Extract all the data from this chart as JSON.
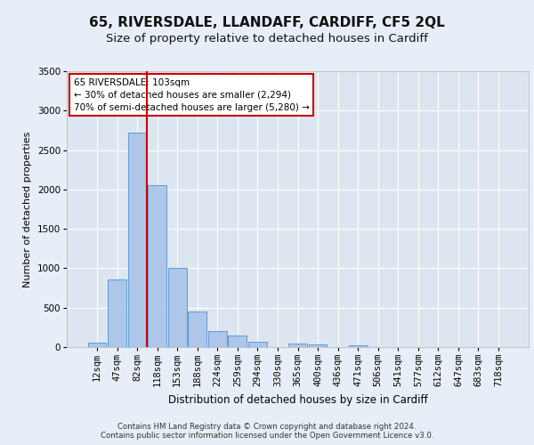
{
  "title": "65, RIVERSDALE, LLANDAFF, CARDIFF, CF5 2QL",
  "subtitle": "Size of property relative to detached houses in Cardiff",
  "xlabel": "Distribution of detached houses by size in Cardiff",
  "ylabel": "Number of detached properties",
  "categories": [
    "12sqm",
    "47sqm",
    "82sqm",
    "118sqm",
    "153sqm",
    "188sqm",
    "224sqm",
    "259sqm",
    "294sqm",
    "330sqm",
    "365sqm",
    "400sqm",
    "436sqm",
    "471sqm",
    "506sqm",
    "541sqm",
    "577sqm",
    "612sqm",
    "647sqm",
    "683sqm",
    "718sqm"
  ],
  "values": [
    55,
    860,
    2720,
    2050,
    1010,
    455,
    205,
    145,
    65,
    0,
    45,
    35,
    0,
    25,
    0,
    0,
    0,
    0,
    0,
    0,
    0
  ],
  "bar_color": "#aec6e8",
  "bar_edge_color": "#5b9bd5",
  "fig_bg_color": "#e8eef7",
  "ax_bg_color": "#dde6f0",
  "grid_color": "#ffffff",
  "property_line_x": 2.5,
  "annotation_line1": "65 RIVERSDALE: 103sqm",
  "annotation_line2": "← 30% of detached houses are smaller (2,294)",
  "annotation_line3": "70% of semi-detached houses are larger (5,280) →",
  "annotation_box_facecolor": "#ffffff",
  "annotation_box_edgecolor": "#cc0000",
  "vline_color": "#cc0000",
  "ylim": [
    0,
    3500
  ],
  "yticks": [
    0,
    500,
    1000,
    1500,
    2000,
    2500,
    3000,
    3500
  ],
  "footer_line1": "Contains HM Land Registry data © Crown copyright and database right 2024.",
  "footer_line2": "Contains public sector information licensed under the Open Government Licence v3.0.",
  "title_fontsize": 11,
  "subtitle_fontsize": 9.5,
  "xlabel_fontsize": 8.5,
  "ylabel_fontsize": 8,
  "tick_fontsize": 7.5,
  "annotation_fontsize": 7.5,
  "footer_fontsize": 6.2
}
